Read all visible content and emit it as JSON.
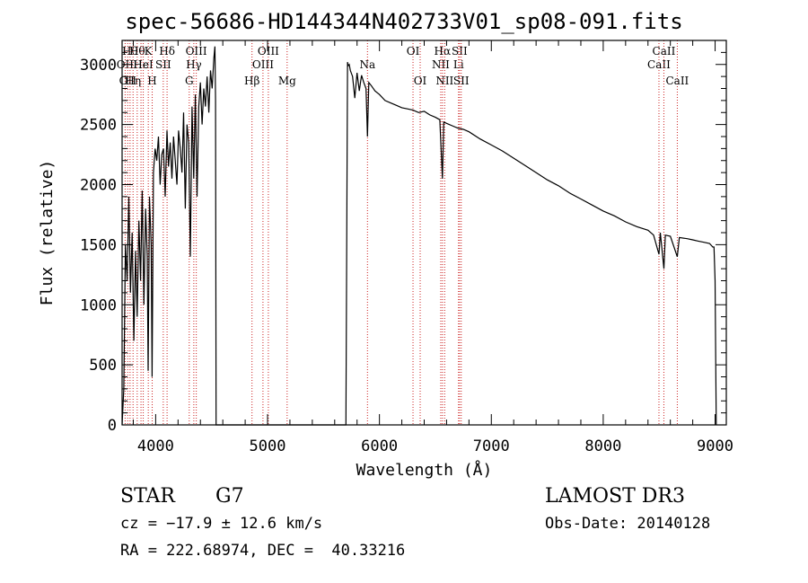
{
  "title": "spec-56686-HD144344N402733V01_sp08-091.fits",
  "info": {
    "class": "STAR",
    "subclass": "G7",
    "survey": "LAMOST DR3",
    "cz": "cz = −17.9 ± 12.6 km/s",
    "obs_date": "Obs-Date: 20140128",
    "radec": "RA = 222.68974, DEC =  40.33216"
  },
  "chart_data": {
    "type": "line",
    "title": "spec-56686-HD144344N402733V01_sp08-091.fits",
    "xlabel": "Wavelength (Å)",
    "ylabel": "Flux (relative)",
    "xlim": [
      3700,
      9100
    ],
    "ylim": [
      0,
      3200
    ],
    "xticks": [
      4000,
      5000,
      6000,
      7000,
      8000,
      9000
    ],
    "yticks": [
      0,
      500,
      1000,
      1500,
      2000,
      2500,
      3000
    ],
    "series": [
      {
        "name": "flux",
        "x": [
          3700,
          3715,
          3730,
          3745,
          3760,
          3775,
          3790,
          3805,
          3820,
          3835,
          3850,
          3865,
          3880,
          3895,
          3910,
          3925,
          3933,
          3945,
          3960,
          3968,
          3980,
          3995,
          4010,
          4025,
          4040,
          4055,
          4070,
          4085,
          4101,
          4115,
          4130,
          4145,
          4160,
          4175,
          4190,
          4205,
          4220,
          4235,
          4250,
          4265,
          4280,
          4295,
          4310,
          4325,
          4340,
          4355,
          4370,
          4385,
          4400,
          4415,
          4430,
          4445,
          4460,
          4475,
          4490,
          4505,
          4520,
          4530,
          4535,
          4540,
          4560,
          5700,
          5715,
          5720,
          5730,
          5740,
          5760,
          5780,
          5800,
          5820,
          5840,
          5860,
          5880,
          5893,
          5905,
          5930,
          5960,
          6000,
          6050,
          6100,
          6150,
          6200,
          6250,
          6300,
          6350,
          6400,
          6450,
          6500,
          6540,
          6563,
          6575,
          6600,
          6650,
          6700,
          6750,
          6800,
          6900,
          7000,
          7100,
          7200,
          7300,
          7400,
          7500,
          7600,
          7700,
          7800,
          7900,
          8000,
          8100,
          8200,
          8300,
          8400,
          8450,
          8498,
          8510,
          8542,
          8555,
          8600,
          8662,
          8680,
          8750,
          8800,
          8850,
          8900,
          8950,
          8980,
          8990,
          9000,
          9010
        ],
        "values": [
          0,
          300,
          1500,
          1200,
          1900,
          1100,
          1600,
          700,
          1450,
          900,
          1700,
          1200,
          1950,
          1000,
          1800,
          1400,
          450,
          1900,
          1500,
          400,
          2100,
          2300,
          2200,
          2400,
          2000,
          2250,
          2300,
          1900,
          2450,
          2150,
          2350,
          2050,
          2400,
          2200,
          2000,
          2450,
          2300,
          2100,
          2600,
          1800,
          2500,
          2350,
          1400,
          2650,
          2050,
          2750,
          1900,
          2650,
          2850,
          2500,
          2800,
          2650,
          2900,
          2600,
          2950,
          2800,
          3050,
          3150,
          2700,
          0,
          0,
          0,
          3020,
          2990,
          3000,
          2950,
          2900,
          2720,
          2930,
          2780,
          2910,
          2850,
          2800,
          2400,
          2850,
          2820,
          2780,
          2750,
          2700,
          2680,
          2660,
          2640,
          2630,
          2620,
          2600,
          2610,
          2580,
          2560,
          2540,
          2050,
          2520,
          2510,
          2490,
          2470,
          2460,
          2440,
          2380,
          2330,
          2280,
          2220,
          2160,
          2100,
          2040,
          1990,
          1930,
          1880,
          1830,
          1780,
          1740,
          1690,
          1650,
          1620,
          1580,
          1420,
          1600,
          1300,
          1580,
          1570,
          1400,
          1560,
          1550,
          1540,
          1530,
          1520,
          1510,
          1480,
          1480,
          1200,
          0
        ]
      }
    ],
    "lines": [
      {
        "wl": 3727,
        "label": "OII",
        "row": 1
      },
      {
        "wl": 3750,
        "label": "OII",
        "row": 3
      },
      {
        "wl": 3771,
        "label": "Hθ",
        "row": 0
      },
      {
        "wl": 3798,
        "label": "Hη",
        "row": 3
      },
      {
        "wl": 3835,
        "label": "Hθ",
        "row": 0
      },
      {
        "wl": 3869,
        "label": "He",
        "row": 1
      },
      {
        "wl": 3889,
        "label": "HeI",
        "row": 1
      },
      {
        "wl": 3934,
        "label": "K",
        "row": 0
      },
      {
        "wl": 3969,
        "label": "H",
        "row": 3
      },
      {
        "wl": 4068,
        "label": "SII",
        "row": 1
      },
      {
        "wl": 4102,
        "label": "Hδ",
        "row": 0
      },
      {
        "wl": 4300,
        "label": "G",
        "row": 3
      },
      {
        "wl": 4341,
        "label": "Hγ",
        "row": 2
      },
      {
        "wl": 4363,
        "label": "OIII",
        "row": 0
      },
      {
        "wl": 4861,
        "label": "Hβ",
        "row": 3
      },
      {
        "wl": 4959,
        "label": "OIII",
        "row": 2
      },
      {
        "wl": 5007,
        "label": "OIII",
        "row": 0
      },
      {
        "wl": 5175,
        "label": "Mg",
        "row": 3
      },
      {
        "wl": 5893,
        "label": "Na",
        "row": 1
      },
      {
        "wl": 6300,
        "label": "OI",
        "row": 0
      },
      {
        "wl": 6364,
        "label": "OI",
        "row": 3
      },
      {
        "wl": 6548,
        "label": "NII",
        "row": 2
      },
      {
        "wl": 6563,
        "label": "Hα",
        "row": 0
      },
      {
        "wl": 6583,
        "label": "NII",
        "row": 3
      },
      {
        "wl": 6707,
        "label": "Li",
        "row": 2
      },
      {
        "wl": 6716,
        "label": "SII",
        "row": 0
      },
      {
        "wl": 6731,
        "label": "SII",
        "row": 3
      },
      {
        "wl": 8498,
        "label": "CaII",
        "row": 2
      },
      {
        "wl": 8542,
        "label": "CaII",
        "row": 0
      },
      {
        "wl": 8662,
        "label": "CaII",
        "row": 3
      }
    ]
  }
}
